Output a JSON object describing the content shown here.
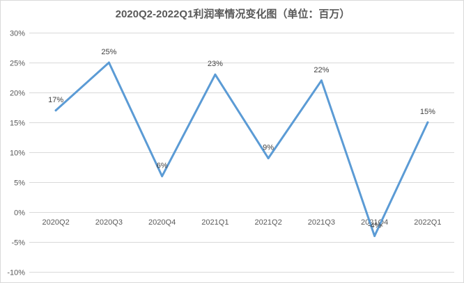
{
  "chart_data": {
    "type": "line",
    "title": "2020Q2-2022Q1利润率情况变化图（单位：百万）",
    "xlabel": "",
    "ylabel": "",
    "categories": [
      "2020Q2",
      "2020Q3",
      "2020Q4",
      "2021Q1",
      "2021Q2",
      "2021Q3",
      "2021Q4",
      "2022Q1"
    ],
    "series": [
      {
        "values": [
          17,
          25,
          6,
          23,
          9,
          22,
          -4,
          15
        ],
        "data_labels": [
          "17%",
          "25%",
          "6%",
          "23%",
          "9%",
          "22%",
          "-4%",
          "15%"
        ],
        "color": "#5B9BD5"
      }
    ],
    "ylim": [
      -10,
      30
    ],
    "yticks": [
      -10,
      -5,
      0,
      5,
      10,
      15,
      20,
      25,
      30
    ],
    "ytick_labels": [
      "-10%",
      "-5%",
      "0%",
      "5%",
      "10%",
      "15%",
      "20%",
      "25%",
      "30%"
    ],
    "grid": true,
    "legend": "none",
    "gridline_color": "#d9d9d9",
    "tick_label_color": "#595959"
  }
}
